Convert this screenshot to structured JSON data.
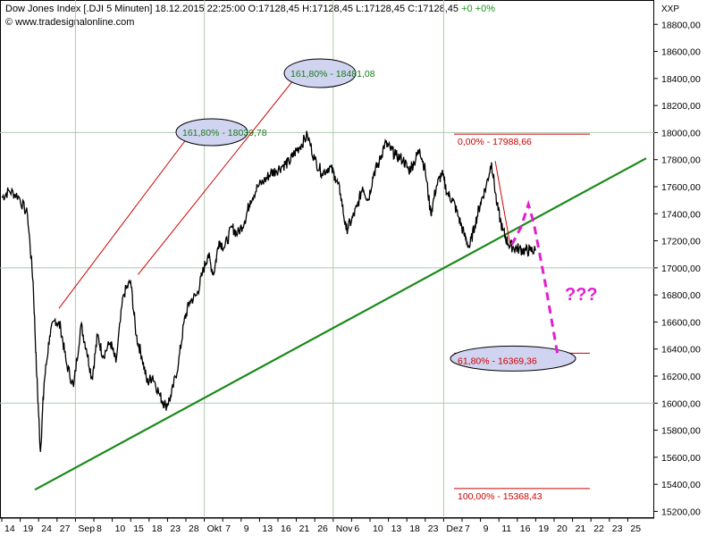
{
  "header": {
    "line1_title": "Dow Jones Index [.DJI  5 Minuten]",
    "line1_datetime": "18.12.2015 22:25:00",
    "line1_ohlc": "O:17128,45 H:17128,45 L:17128,45 C:17128,45",
    "line1_change": "+0 +0%",
    "line2_source": "© www.tradesignalonline.com"
  },
  "axis_unit": "XXP",
  "colors": {
    "price": "#000000",
    "trendline": "#1a8a1a",
    "fib": "#cc0000",
    "projection": "#e020d0",
    "ellipse_fill": "#d0d4f0",
    "grid": "#b0c8b0"
  },
  "chart_data": {
    "type": "line",
    "title": "Dow Jones Index [.DJI  5 Minuten]",
    "ylim": [
      15150,
      18980
    ],
    "y_ticks": [
      15200,
      15400,
      15600,
      15800,
      16000,
      16200,
      16400,
      16600,
      16800,
      17000,
      17200,
      17400,
      17600,
      17800,
      18000,
      18200,
      18400,
      18600,
      18800
    ],
    "y_tick_labels": [
      "15200,00",
      "15400,00",
      "15600,00",
      "15800,00",
      "16000,00",
      "16200,00",
      "16400,00",
      "16600,00",
      "16800,00",
      "17000,00",
      "17200,00",
      "17400,00",
      "17600,00",
      "17800,00",
      "18000,00",
      "18200,00",
      "18400,00",
      "18600,00",
      "18800,00"
    ],
    "x_labels": [
      "14",
      "19",
      "24",
      "27",
      "Sep",
      "8",
      "10",
      "15",
      "18",
      "23",
      "28",
      "Okt",
      "7",
      "9",
      "13",
      "16",
      "21",
      "26",
      "Nov",
      "6",
      "10",
      "13",
      "18",
      "23",
      "Dez",
      "7",
      "9",
      "11",
      "16",
      "19",
      "20",
      "21",
      "22",
      "23",
      "25"
    ],
    "x_label_pos": [
      0,
      1,
      2,
      3,
      4,
      5,
      6,
      7,
      8,
      9,
      10,
      11,
      12,
      13,
      14,
      15,
      16,
      17,
      18,
      19,
      20,
      21,
      22,
      23,
      24,
      25,
      26,
      27,
      28,
      29,
      30,
      31,
      32,
      33,
      34
    ],
    "x_range": [
      0,
      35
    ],
    "grid": true,
    "series": [
      {
        "values_x": [
          0,
          0.4,
          0.9,
          1.4,
          1.7,
          1.9,
          2.1,
          2.3,
          2.6,
          2.9,
          3.2,
          3.5,
          3.9,
          4.3,
          4.6,
          4.9,
          5.2,
          5.5,
          5.9,
          6.2,
          6.6,
          7.0,
          7.3,
          7.6,
          7.9,
          8.2,
          8.6,
          8.9,
          9.2,
          9.6,
          9.9,
          10.2,
          10.6,
          10.9,
          11.2,
          11.5,
          11.8,
          12.1,
          12.5,
          12.8,
          13.2,
          13.5,
          13.9,
          14.3,
          14.6,
          14.9,
          15.3,
          15.6,
          15.9,
          16.2,
          16.6,
          17.0,
          17.4,
          17.8,
          18.1,
          18.4,
          18.7,
          19.0,
          19.3,
          19.6,
          19.9,
          20.2,
          20.5,
          20.8,
          21.1,
          21.4,
          21.8,
          22.1,
          22.4,
          22.7,
          23.0,
          23.3,
          23.6,
          23.9,
          24.2,
          24.5,
          24.8,
          25.1,
          25.4,
          25.7,
          26.0,
          26.3,
          26.6,
          26.9,
          27.2,
          27.5,
          27.8,
          28.1,
          28.4,
          28.7,
          29.0
        ],
        "values": [
          17520,
          17570,
          17530,
          17390,
          16900,
          16200,
          15640,
          16150,
          16500,
          16620,
          16560,
          16300,
          16120,
          16580,
          16400,
          16180,
          16500,
          16350,
          16450,
          16300,
          16800,
          16900,
          16500,
          16350,
          16150,
          16200,
          16050,
          15980,
          16050,
          16300,
          16600,
          16750,
          16800,
          16960,
          17100,
          16950,
          17200,
          17150,
          17300,
          17250,
          17350,
          17500,
          17600,
          17650,
          17700,
          17720,
          17760,
          17780,
          17850,
          17900,
          17980,
          17800,
          17700,
          17750,
          17680,
          17550,
          17280,
          17350,
          17450,
          17600,
          17500,
          17700,
          17780,
          17920,
          17880,
          17830,
          17800,
          17720,
          17780,
          17880,
          17720,
          17400,
          17600,
          17700,
          17550,
          17500,
          17380,
          17250,
          17150,
          17320,
          17480,
          17600,
          17780,
          17460,
          17280,
          17180,
          17150,
          17140,
          17128,
          17128,
          17128
        ]
      }
    ],
    "trendline": {
      "from": [
        1.8,
        15360
      ],
      "to": [
        35,
        17810
      ]
    },
    "fib_levels": [
      {
        "label": "0,00% - 17988,66",
        "value": 17988.66
      },
      {
        "label": "61,80% - 16369,36",
        "value": 16369.36
      },
      {
        "label": "100,00% - 15368,43",
        "value": 15368.43
      }
    ],
    "fib_extensions": [
      {
        "label": "161,80% - 18039,78",
        "value": 18039.78
      },
      {
        "label": "161,80% - 18481,08",
        "value": 18481.08
      }
    ],
    "annotation": "???"
  }
}
